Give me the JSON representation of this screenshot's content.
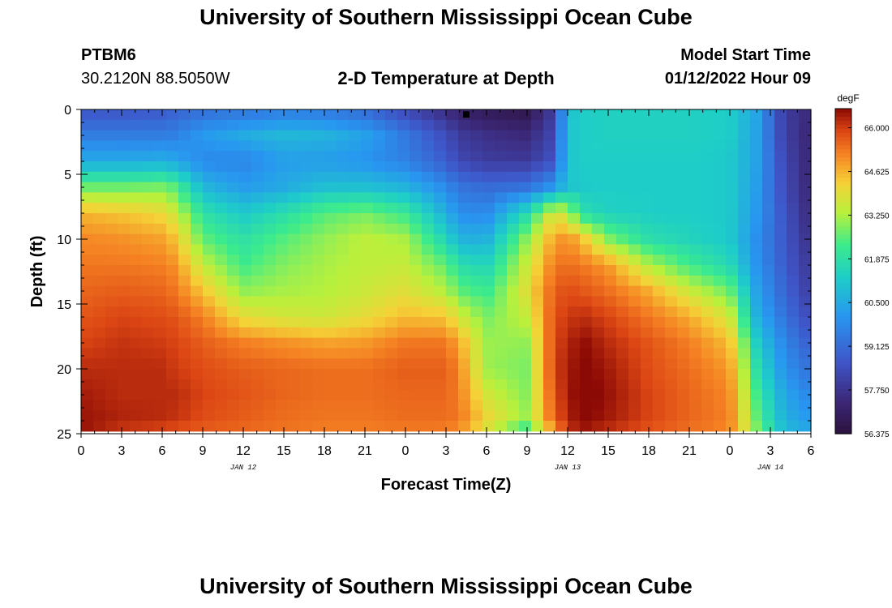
{
  "header": {
    "main_title": "University of Southern Mississippi Ocean Cube",
    "station_id": "PTBM6",
    "coordinates": "30.2120N  88.5050W",
    "chart_title": "2-D Temperature at Depth",
    "model_start_label": "Model Start Time",
    "model_start_value": "01/12/2022 Hour 09"
  },
  "footer": {
    "repeat_title": "University of Southern Mississippi Ocean Cube"
  },
  "chart_data": {
    "type": "heatmap",
    "title": "2-D Temperature at Depth",
    "xlabel": "Forecast Time(Z)",
    "ylabel": "Depth (ft)",
    "xlim": [
      0,
      54
    ],
    "ylim": [
      25,
      0
    ],
    "x_ticks": [
      0,
      3,
      6,
      9,
      12,
      15,
      18,
      21,
      24,
      27,
      30,
      33,
      36,
      39,
      42,
      45,
      48,
      51,
      54
    ],
    "x_tick_labels": [
      "0",
      "3",
      "6",
      "9",
      "12",
      "15",
      "18",
      "21",
      "0",
      "3",
      "6",
      "9",
      "12",
      "15",
      "18",
      "21",
      "0",
      "3",
      "6"
    ],
    "y_ticks": [
      0,
      5,
      10,
      15,
      20,
      25
    ],
    "y_tick_labels": [
      "0",
      "5",
      "10",
      "15",
      "20",
      "25"
    ],
    "date_labels": [
      {
        "x": 12,
        "label": "JAN 12"
      },
      {
        "x": 36,
        "label": "JAN 13"
      },
      {
        "x": 51,
        "label": "JAN 14"
      }
    ],
    "colorbar": {
      "unit": "degF",
      "min": 56.375,
      "max": 66.6,
      "tick_values": [
        66.0,
        64.625,
        63.25,
        61.875,
        60.5,
        59.125,
        57.75,
        56.375
      ],
      "tick_labels": [
        "66.000",
        "64.625",
        "63.250",
        "61.875",
        "60.500",
        "59.125",
        "57.750",
        "56.375"
      ]
    },
    "grid_depths": [
      0,
      2,
      4,
      6,
      8,
      10,
      12,
      14,
      16,
      18,
      20,
      22,
      24,
      25
    ],
    "grid_hours": [
      0,
      3,
      6,
      7,
      9,
      12,
      15,
      18,
      21,
      24,
      27,
      28,
      30,
      33,
      35,
      36,
      37,
      39,
      42,
      45,
      48,
      50,
      52,
      54
    ],
    "temperature_degF": [
      [
        58.6,
        58.6,
        58.7,
        58.9,
        59.2,
        59.3,
        59.5,
        59.4,
        59.1,
        58.3,
        57.5,
        57.1,
        56.8,
        56.6,
        58.0,
        61.0,
        61.3,
        61.4,
        61.4,
        61.4,
        61.3,
        60.4,
        58.0,
        57.4
      ],
      [
        59.5,
        59.5,
        59.5,
        59.6,
        60.1,
        60.5,
        60.8,
        60.7,
        60.3,
        59.4,
        58.4,
        57.9,
        57.6,
        57.4,
        58.3,
        61.1,
        61.3,
        61.4,
        61.4,
        61.4,
        61.3,
        60.3,
        58.1,
        57.3
      ],
      [
        60.5,
        60.5,
        60.6,
        60.4,
        59.8,
        59.7,
        60.2,
        60.2,
        60.0,
        59.6,
        58.8,
        58.3,
        58.0,
        57.9,
        58.6,
        61.1,
        61.3,
        61.3,
        61.3,
        61.3,
        61.2,
        60.3,
        58.3,
        57.3
      ],
      [
        62.7,
        62.7,
        62.8,
        62.5,
        60.8,
        60.2,
        60.5,
        61.0,
        61.0,
        60.7,
        59.8,
        59.3,
        59.1,
        59.3,
        60.1,
        61.1,
        61.2,
        61.3,
        61.3,
        61.3,
        61.2,
        60.2,
        58.4,
        57.3
      ],
      [
        64.6,
        64.4,
        64.1,
        63.6,
        61.9,
        61.2,
        61.8,
        62.5,
        62.8,
        62.2,
        60.6,
        59.9,
        59.8,
        61.7,
        63.9,
        63.4,
        61.8,
        61.4,
        61.3,
        61.3,
        61.2,
        60.1,
        58.6,
        57.4
      ],
      [
        65.1,
        65.0,
        64.8,
        64.4,
        62.6,
        61.9,
        62.5,
        63.0,
        63.4,
        63.2,
        61.5,
        60.7,
        60.6,
        63.0,
        64.8,
        65.0,
        64.5,
        62.9,
        61.8,
        61.5,
        61.2,
        59.9,
        58.7,
        57.6
      ],
      [
        65.3,
        65.3,
        65.2,
        65.0,
        63.5,
        62.3,
        62.9,
        63.2,
        63.4,
        63.5,
        62.6,
        61.8,
        61.5,
        63.6,
        65.3,
        65.4,
        65.3,
        64.9,
        63.3,
        62.3,
        61.6,
        60.0,
        58.8,
        57.8
      ],
      [
        65.5,
        65.6,
        65.5,
        65.3,
        64.4,
        63.0,
        63.2,
        63.3,
        63.6,
        63.9,
        63.3,
        62.6,
        62.2,
        63.9,
        65.6,
        65.8,
        65.7,
        65.4,
        64.7,
        63.6,
        62.7,
        60.3,
        59.0,
        58.0
      ],
      [
        65.7,
        65.9,
        65.8,
        65.7,
        65.2,
        64.0,
        63.7,
        63.6,
        64.0,
        64.5,
        64.4,
        63.7,
        62.8,
        63.5,
        65.8,
        66.0,
        66.2,
        65.9,
        65.3,
        64.7,
        63.7,
        60.6,
        59.3,
        58.3
      ],
      [
        65.9,
        66.1,
        66.0,
        65.9,
        65.6,
        65.2,
        65.0,
        64.8,
        64.9,
        65.3,
        65.3,
        64.7,
        63.1,
        63.0,
        65.9,
        66.2,
        66.6,
        66.2,
        65.7,
        65.2,
        64.5,
        61.3,
        59.7,
        58.8
      ],
      [
        66.2,
        66.2,
        66.2,
        66.0,
        65.8,
        65.6,
        65.5,
        65.4,
        65.4,
        65.6,
        65.6,
        65.1,
        63.1,
        62.8,
        66.0,
        66.3,
        66.7,
        66.4,
        65.8,
        65.4,
        64.9,
        61.8,
        60.0,
        59.2
      ],
      [
        66.4,
        66.2,
        66.2,
        66.2,
        65.9,
        65.7,
        65.5,
        65.4,
        65.4,
        65.5,
        65.5,
        65.2,
        63.7,
        62.9,
        65.8,
        66.3,
        66.8,
        66.5,
        65.9,
        65.5,
        65.1,
        62.3,
        60.4,
        59.7
      ],
      [
        66.5,
        66.3,
        66.2,
        66.1,
        65.8,
        65.6,
        65.4,
        65.3,
        65.3,
        65.4,
        65.4,
        65.3,
        64.2,
        63.1,
        65.6,
        66.2,
        66.7,
        66.4,
        65.9,
        65.5,
        65.2,
        62.6,
        60.7,
        60.1
      ],
      [
        66.5,
        65.9,
        65.7,
        65.6,
        65.5,
        65.4,
        65.3,
        65.2,
        65.2,
        65.2,
        65.1,
        64.8,
        63.5,
        61.4,
        64.5,
        65.9,
        66.3,
        66.0,
        65.6,
        65.3,
        65.0,
        63.0,
        61.0,
        60.5
      ]
    ],
    "markers": [
      {
        "x": 28.5,
        "depth": 0.2,
        "label": "station marker"
      }
    ]
  },
  "colors": {
    "text": "#000000",
    "background": "#ffffff"
  }
}
